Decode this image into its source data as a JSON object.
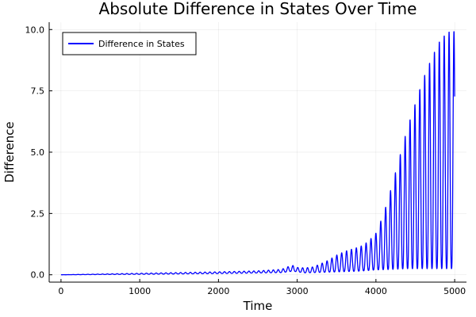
{
  "chart_data": {
    "type": "line",
    "title": "Absolute Difference in States Over Time",
    "xlabel": "Time",
    "ylabel": "Difference",
    "xlim": [
      -150,
      5150
    ],
    "ylim": [
      -0.3,
      10.3
    ],
    "xticks": [
      0,
      1000,
      2000,
      3000,
      4000,
      5000
    ],
    "xtick_labels": [
      "0",
      "1000",
      "2000",
      "3000",
      "4000",
      "5000"
    ],
    "yticks": [
      0,
      2.5,
      5,
      7.5,
      10
    ],
    "ytick_labels": [
      "0.0",
      "2.5",
      "5.0",
      "7.5",
      "10.0"
    ],
    "grid": true,
    "legend_position": "top-left",
    "series": [
      {
        "name": "Difference in States",
        "color": "#0000ff",
        "oscillation_period": 62,
        "upper_envelope": {
          "x": [
            0,
            500,
            1000,
            1500,
            2000,
            2500,
            2800,
            2900,
            2950,
            3000,
            3100,
            3200,
            3300,
            3400,
            3500,
            3600,
            3700,
            3800,
            3900,
            4000,
            4100,
            4200,
            4300,
            4400,
            4500,
            4600,
            4700,
            4800,
            4900,
            4950,
            5000
          ],
          "y": [
            0.0,
            0.03,
            0.06,
            0.09,
            0.12,
            0.16,
            0.22,
            0.35,
            0.38,
            0.3,
            0.28,
            0.32,
            0.45,
            0.6,
            0.8,
            0.95,
            1.05,
            1.15,
            1.35,
            1.7,
            2.5,
            3.6,
            4.8,
            6.0,
            7.0,
            8.0,
            8.8,
            9.5,
            9.9,
            9.95,
            9.95
          ]
        },
        "lower_envelope": {
          "x": [
            0,
            1000,
            2000,
            2800,
            2950,
            3000,
            3100,
            3300,
            3500,
            3800,
            4000,
            4200,
            4400,
            4600,
            4800,
            5000
          ],
          "y": [
            0.0,
            0.02,
            0.05,
            0.09,
            0.15,
            0.12,
            0.08,
            0.1,
            0.12,
            0.15,
            0.2,
            0.22,
            0.25,
            0.25,
            0.25,
            0.25
          ]
        }
      }
    ]
  }
}
